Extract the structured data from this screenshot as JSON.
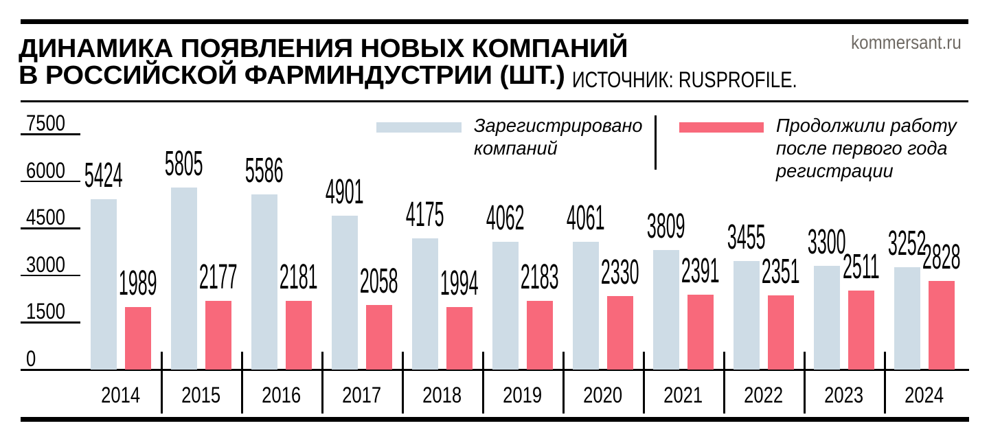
{
  "header": {
    "title_line1": "ДИНАМИКА ПОЯВЛЕНИЯ НОВЫХ КОМПАНИЙ",
    "title_line2": "В РОССИЙСКОЙ ФАРМИНДУСТРИИ (ШТ.)",
    "source": "ИСТОЧНИК: RUSPROFILE.",
    "site": "kommersant.ru",
    "site_color": "#6f6a64"
  },
  "legend": {
    "registered": {
      "lines": [
        "Зарегистрировано",
        "компаний"
      ],
      "color": "#cedce6"
    },
    "survived": {
      "lines": [
        "Продолжили работу",
        "после первого года",
        "регистрации"
      ],
      "color": "#f8697b"
    }
  },
  "chart_data": {
    "type": "bar",
    "title": "ДИНАМИКА ПОЯВЛЕНИЯ НОВЫХ КОМПАНИЙ В РОССИЙСКОЙ ФАРМИНДУСТРИИ (ШТ.)",
    "source": "ИСТОЧНИК: RUSPROFILE.",
    "categories": [
      "2014",
      "2015",
      "2016",
      "2017",
      "2018",
      "2019",
      "2020",
      "2021",
      "2022",
      "2023",
      "2024"
    ],
    "series": [
      {
        "name": "Зарегистрировано компаний",
        "color": "#cedce6",
        "values": [
          5424,
          5805,
          5586,
          4901,
          4175,
          4062,
          4061,
          3809,
          3455,
          3300,
          3252
        ]
      },
      {
        "name": "Продолжили работу после первого года регистрации",
        "color": "#f8697b",
        "values": [
          1989,
          2177,
          2181,
          2058,
          1994,
          2183,
          2330,
          2391,
          2351,
          2511,
          2828
        ]
      }
    ],
    "xlabel": "",
    "ylabel": "",
    "ylim": [
      0,
      7500
    ],
    "yticks": [
      0,
      1500,
      3000,
      4500,
      6000,
      7500
    ],
    "grid": false,
    "legend_position": "top",
    "value_labels": true
  }
}
